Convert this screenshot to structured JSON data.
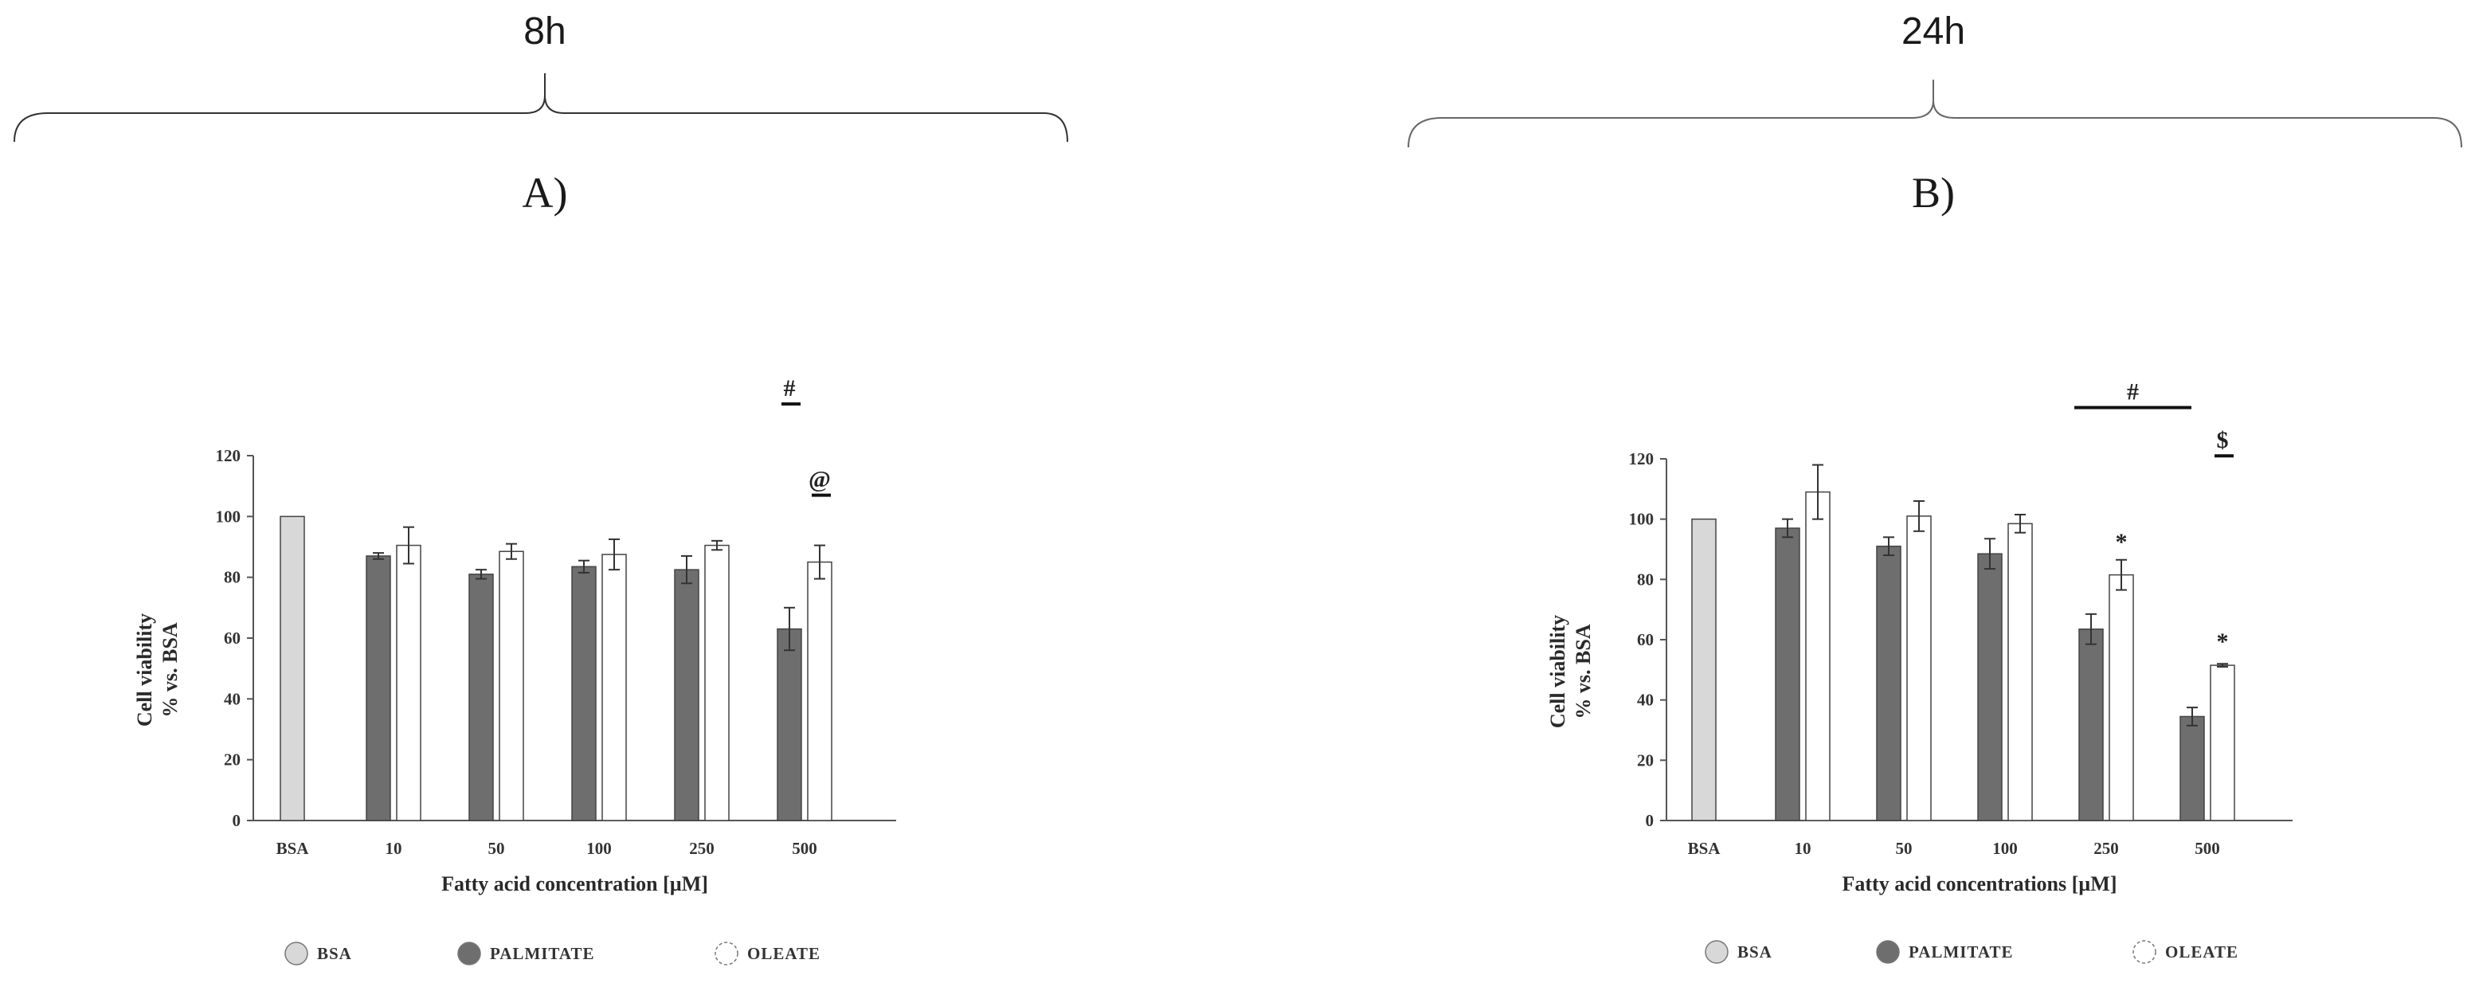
{
  "figure": {
    "time_labels": [
      "8h",
      "24h"
    ],
    "legend": [
      "BSA",
      "PALMITATE",
      "OLEATE"
    ]
  },
  "colors": {
    "bsa": "#d8d8d8",
    "palmitate": "#6e6e6e",
    "oleate": "#ffffff",
    "stroke": "#444444"
  },
  "chart_data": [
    {
      "type": "bar",
      "panel": "A)",
      "time": "8h",
      "categories": [
        "BSA",
        "10",
        "50",
        "100",
        "250",
        "500"
      ],
      "xlabel": "Fatty acid concentration [µM]",
      "ylabel": [
        "Cell viability",
        "% vs. BSA"
      ],
      "ylim": [
        0,
        120
      ],
      "yticks": [
        0,
        20,
        40,
        60,
        80,
        100,
        120
      ],
      "series": [
        {
          "name": "BSA",
          "values": [
            100,
            null,
            null,
            null,
            null,
            null
          ],
          "errors": [
            0,
            null,
            null,
            null,
            null,
            null
          ]
        },
        {
          "name": "PALMITATE",
          "values": [
            null,
            87,
            81,
            83.5,
            82.5,
            63
          ],
          "errors": [
            null,
            1,
            1.5,
            2,
            4.5,
            7
          ]
        },
        {
          "name": "OLEATE",
          "values": [
            null,
            90.5,
            88.5,
            87.5,
            90.5,
            85
          ],
          "errors": [
            null,
            6,
            2.5,
            5,
            1.5,
            5.5
          ]
        }
      ],
      "annotations": [
        {
          "text": "#",
          "category": "500",
          "y": 137,
          "span": "palmitate"
        },
        {
          "text": "@",
          "category": "500",
          "y": 107,
          "span": "oleate"
        }
      ],
      "grid": false
    },
    {
      "type": "bar",
      "panel": "B)",
      "time": "24h",
      "categories": [
        "BSA",
        "10",
        "50",
        "100",
        "250",
        "500"
      ],
      "xlabel": "Fatty acid concentrations [µM]",
      "ylabel": [
        "Cell viability",
        "% vs. BSA"
      ],
      "ylim": [
        0,
        120
      ],
      "yticks": [
        0,
        20,
        40,
        60,
        80,
        100,
        120
      ],
      "series": [
        {
          "name": "BSA",
          "values": [
            100,
            null,
            null,
            null,
            null,
            null
          ],
          "errors": [
            0,
            null,
            null,
            null,
            null,
            null
          ]
        },
        {
          "name": "PALMITATE",
          "values": [
            null,
            97,
            91,
            88.5,
            63.5,
            34.5
          ],
          "errors": [
            null,
            3,
            3,
            5,
            5,
            3
          ]
        },
        {
          "name": "OLEATE",
          "values": [
            null,
            109,
            101,
            98.5,
            81.5,
            51.5
          ],
          "errors": [
            null,
            9,
            5,
            3,
            5,
            0.5
          ]
        }
      ],
      "annotations": [
        {
          "text": "*",
          "category": "250",
          "y": 93,
          "span": "oleate"
        },
        {
          "text": "*",
          "category": "500",
          "y": 60,
          "span": "oleate"
        },
        {
          "text": "#",
          "from": "250",
          "to": "500",
          "y": 137
        },
        {
          "text": "$",
          "category": "500",
          "y": 121,
          "span": "oleate"
        }
      ],
      "grid": false
    }
  ]
}
